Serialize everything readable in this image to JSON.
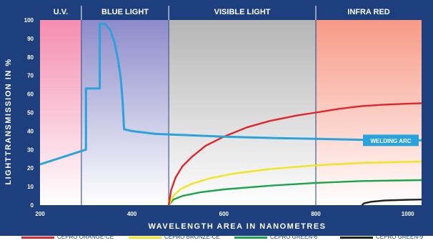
{
  "chart_data": {
    "type": "line",
    "xlabel": "WAVELENGTH AREA IN NANOMETRES",
    "ylabel": "LIGHTTRANSMISSION IN %",
    "xlim": [
      200,
      1030
    ],
    "ylim": [
      0,
      100
    ],
    "x_ticks": [
      200,
      400,
      600,
      800,
      1000
    ],
    "y_ticks": [
      0,
      10,
      20,
      30,
      40,
      50,
      60,
      70,
      80,
      90,
      100
    ],
    "grid": false,
    "regions": [
      {
        "label": "U.V.",
        "from": 200,
        "to": 290,
        "color": "#f7a7c0"
      },
      {
        "label": "BLUE LIGHT",
        "from": 290,
        "to": 480,
        "color": "#9d9bd0"
      },
      {
        "label": "VISIBLE LIGHT",
        "from": 480,
        "to": 800,
        "color": "#bcbcbc"
      },
      {
        "label": "INFRA RED",
        "from": 800,
        "to": 1030,
        "color": "#f8a898"
      }
    ],
    "annotation": {
      "text": "WELDING ARC",
      "color": "#2aa3dd"
    },
    "series": [
      {
        "name": "WELDING ARC",
        "color": "#2aa3dd",
        "points": [
          [
            200,
            22
          ],
          [
            300,
            30
          ],
          [
            300,
            63
          ],
          [
            330,
            63
          ],
          [
            330,
            98
          ],
          [
            340,
            98
          ],
          [
            352,
            95
          ],
          [
            362,
            88
          ],
          [
            370,
            78
          ],
          [
            376,
            68
          ],
          [
            380,
            55
          ],
          [
            382,
            45
          ],
          [
            383,
            41
          ],
          [
            400,
            40
          ],
          [
            450,
            38.5
          ],
          [
            500,
            38
          ],
          [
            600,
            37
          ],
          [
            700,
            36.3
          ],
          [
            800,
            35.8
          ],
          [
            900,
            35.3
          ],
          [
            1030,
            35
          ]
        ]
      },
      {
        "name": "CEPRO ORANGE-CE",
        "color": "#e3242b",
        "points": [
          [
            480,
            0
          ],
          [
            485,
            8
          ],
          [
            495,
            15
          ],
          [
            510,
            21
          ],
          [
            530,
            26
          ],
          [
            560,
            32
          ],
          [
            600,
            37
          ],
          [
            650,
            42
          ],
          [
            700,
            45.5
          ],
          [
            760,
            48.5
          ],
          [
            800,
            50
          ],
          [
            850,
            52
          ],
          [
            900,
            53.5
          ],
          [
            950,
            54.3
          ],
          [
            1000,
            54.8
          ],
          [
            1030,
            55
          ]
        ]
      },
      {
        "name": "CEPRO BRONZE-CE",
        "color": "#f2e51c",
        "points": [
          [
            480,
            0
          ],
          [
            490,
            5
          ],
          [
            505,
            8.5
          ],
          [
            530,
            11.5
          ],
          [
            570,
            14.5
          ],
          [
            620,
            17
          ],
          [
            700,
            19.5
          ],
          [
            800,
            21.5
          ],
          [
            900,
            22.8
          ],
          [
            1030,
            23.5
          ]
        ]
      },
      {
        "name": "CEPRO GREEN-6",
        "color": "#1aa54b",
        "points": [
          [
            480,
            0
          ],
          [
            490,
            3
          ],
          [
            510,
            5
          ],
          [
            550,
            7
          ],
          [
            600,
            8.5
          ],
          [
            700,
            10.5
          ],
          [
            800,
            12
          ],
          [
            900,
            13
          ],
          [
            1030,
            13.5
          ]
        ]
      },
      {
        "name": "CEPRO GREEN-9",
        "color": "#222222",
        "points": [
          [
            900,
            0
          ],
          [
            905,
            1
          ],
          [
            920,
            1.8
          ],
          [
            950,
            2.5
          ],
          [
            1000,
            2.9
          ],
          [
            1030,
            3
          ]
        ]
      }
    ]
  }
}
